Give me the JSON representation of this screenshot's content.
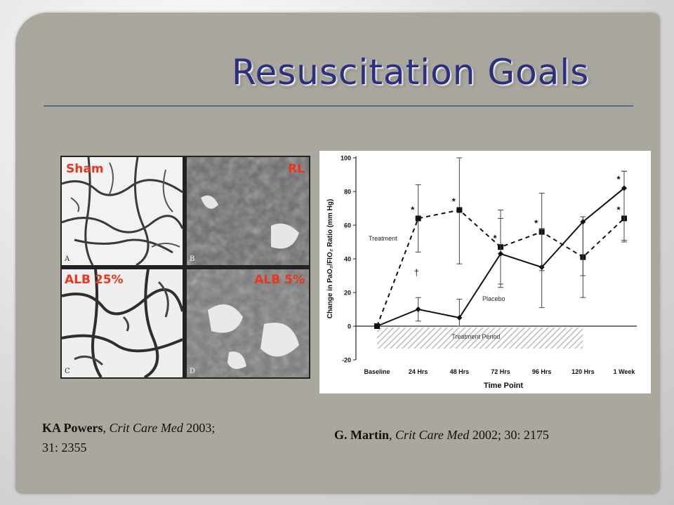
{
  "slide": {
    "title": "Resuscitation Goals"
  },
  "micrographs": {
    "panels": [
      {
        "label": "Sham",
        "letter": "A"
      },
      {
        "label": "RL",
        "letter": "B"
      },
      {
        "label": "ALB 25%",
        "letter": "C"
      },
      {
        "label": "ALB 5%",
        "letter": "D"
      }
    ],
    "label_color": "#e8361f"
  },
  "citations": {
    "left": {
      "author": "KA Powers",
      "sep": ", ",
      "journal": "Crit Care Med",
      "year": " 2003;",
      "volume": "31: 2355"
    },
    "right": {
      "author": "G. Martin",
      "sep": ", ",
      "journal": "Crit Care Med",
      "rest": " 2002; 30: 2175"
    }
  },
  "chart_data": {
    "type": "line",
    "ylabel": "Change in PaO₂/FIO₂ Ratio (mm Hg)",
    "xlabel": "Time Point",
    "categories": [
      "Baseline",
      "24 Hrs",
      "48 Hrs",
      "72 Hrs",
      "96 Hrs",
      "120 Hrs",
      "1 Week"
    ],
    "ylim": [
      -20,
      100
    ],
    "yticks": [
      -20,
      0,
      20,
      40,
      60,
      80,
      100
    ],
    "series": [
      {
        "name": "Treatment",
        "style": "dashed",
        "marker": "square",
        "values": [
          0,
          64,
          69,
          47,
          56,
          41,
          64
        ],
        "err_high": [
          0,
          84,
          100,
          69,
          79,
          65,
          92
        ],
        "err_low": [
          0,
          44,
          37,
          25,
          33,
          17,
          50
        ],
        "stars": [
          "",
          "*",
          "*",
          "*",
          "*",
          "",
          "*"
        ]
      },
      {
        "name": "Placebo",
        "style": "solid",
        "marker": "diamond",
        "values": [
          0,
          10,
          5,
          43,
          35,
          62,
          82
        ],
        "err_high": [
          0,
          17,
          16,
          64,
          58,
          65,
          92
        ],
        "err_low": [
          0,
          3,
          0,
          23,
          11,
          30,
          51
        ],
        "stars": [
          "",
          "",
          "",
          "",
          "",
          "",
          "*"
        ]
      }
    ],
    "dagger": {
      "label": "†",
      "category": "24 Hrs",
      "y": 30
    },
    "shaded_region": {
      "label": "Treatment Period",
      "from": "Baseline",
      "to": "120 Hrs",
      "y_from": 0,
      "y_to": -10
    },
    "grid": false,
    "legend": "inline labels"
  }
}
